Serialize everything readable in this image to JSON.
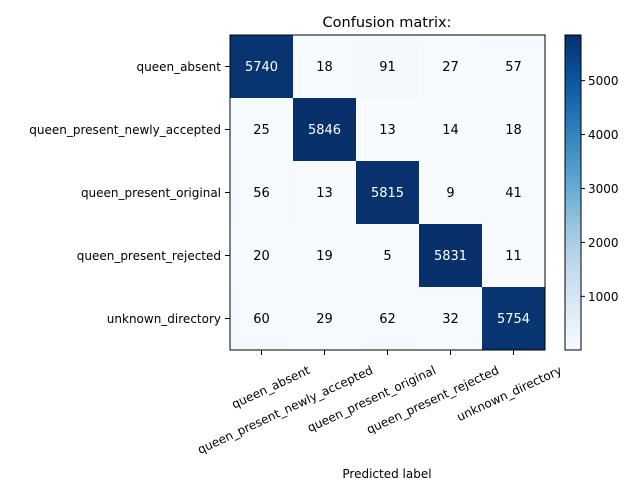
{
  "chart_data": {
    "type": "heatmap",
    "title": "Confusion matrix:",
    "xlabel": "Predicted label",
    "ylabel": "",
    "row_labels": [
      "queen_absent",
      "queen_present_newly_accepted",
      "queen_present_original",
      "queen_present_rejected",
      "unknown_directory"
    ],
    "col_labels": [
      "queen_absent",
      "queen_present_newly_accepted",
      "queen_present_original",
      "queen_present_rejected",
      "unknown_directory"
    ],
    "values": [
      [
        5740,
        18,
        91,
        27,
        57
      ],
      [
        25,
        5846,
        13,
        14,
        18
      ],
      [
        56,
        13,
        5815,
        9,
        41
      ],
      [
        20,
        19,
        5,
        5831,
        11
      ],
      [
        60,
        29,
        62,
        32,
        5754
      ]
    ],
    "colormap": "Blues",
    "vmin": 5,
    "vmax": 5846,
    "colorbar_ticks": [
      "1000",
      "2000",
      "3000",
      "4000",
      "5000"
    ],
    "colorbar_tick_values": [
      1000,
      2000,
      3000,
      4000,
      5000
    ]
  }
}
